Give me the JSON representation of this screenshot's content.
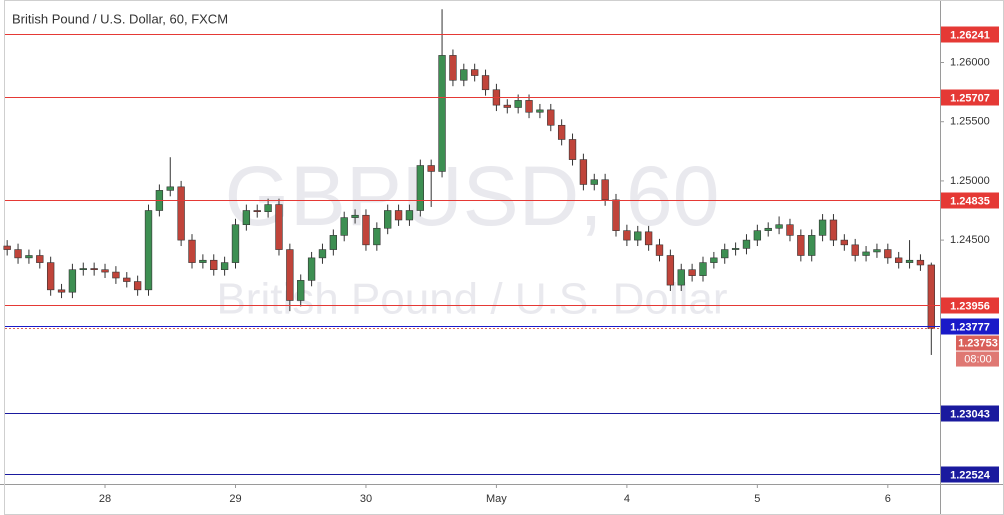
{
  "chart_data": {
    "type": "candlestick",
    "title": "British Pound / U.S. Dollar, 60, FXCM",
    "watermark": {
      "symbol": "GBPUSD, 60",
      "description": "British Pound / U.S. Dollar"
    },
    "up_color": "#3d8f52",
    "down_color": "#c0443a",
    "x": [
      -18,
      -16,
      -14,
      -12,
      -10,
      -8,
      -6,
      -4,
      -2,
      0,
      2,
      4,
      6,
      8,
      10,
      12,
      14,
      16,
      18,
      20,
      22,
      24,
      26,
      28,
      30,
      32,
      34,
      36,
      38,
      40,
      42,
      44,
      46,
      48,
      50,
      52,
      54,
      56,
      58,
      60,
      62,
      64,
      66,
      68,
      70,
      72,
      74,
      76,
      78,
      80,
      82,
      84,
      86,
      88,
      90,
      92,
      94,
      96,
      98,
      100,
      102,
      104,
      106,
      108,
      110,
      112,
      114,
      116,
      118,
      120,
      122,
      124,
      126,
      128,
      130,
      132,
      134,
      136,
      138,
      140,
      142,
      144,
      146,
      148,
      150,
      152
    ],
    "open": [
      1.2445,
      1.2442,
      1.2435,
      1.2437,
      1.2431,
      1.2408,
      1.2406,
      1.2425,
      1.2426,
      1.2425,
      1.2423,
      1.2418,
      1.2415,
      1.2408,
      1.2475,
      1.2492,
      1.2495,
      1.245,
      1.2431,
      1.2433,
      1.2425,
      1.2431,
      1.2463,
      1.2475,
      1.2474,
      1.248,
      1.2442,
      1.2399,
      1.2416,
      1.2435,
      1.2442,
      1.2454,
      1.2469,
      1.2471,
      1.2446,
      1.246,
      1.2475,
      1.2467,
      1.2475,
      1.2513,
      1.2508,
      1.2606,
      1.2585,
      1.2594,
      1.2589,
      1.2577,
      1.2564,
      1.2562,
      1.2568,
      1.2558,
      1.256,
      1.2547,
      1.2535,
      1.2518,
      1.2497,
      1.2501,
      1.2484,
      1.2458,
      1.245,
      1.2457,
      1.2446,
      1.2437,
      1.2412,
      1.2425,
      1.242,
      1.2431,
      1.2435,
      1.2442,
      1.2443,
      1.245,
      1.2458,
      1.246,
      1.2463,
      1.2454,
      1.2437,
      1.2454,
      1.2467,
      1.245,
      1.2446,
      1.2437,
      1.244,
      1.2442,
      1.2435,
      1.2431,
      1.2433,
      1.2429
    ],
    "high": [
      1.245,
      1.2447,
      1.2442,
      1.2442,
      1.2436,
      1.2413,
      1.243,
      1.2431,
      1.2431,
      1.243,
      1.2428,
      1.2423,
      1.242,
      1.248,
      1.2497,
      1.252,
      1.25,
      1.2455,
      1.2438,
      1.2438,
      1.2436,
      1.2468,
      1.248,
      1.248,
      1.2485,
      1.2485,
      1.2447,
      1.2421,
      1.244,
      1.2447,
      1.2459,
      1.2474,
      1.2476,
      1.2476,
      1.2465,
      1.248,
      1.248,
      1.248,
      1.2518,
      1.2518,
      1.2645,
      1.2611,
      1.2599,
      1.2599,
      1.2594,
      1.2582,
      1.2569,
      1.2573,
      1.2573,
      1.2565,
      1.2565,
      1.2552,
      1.254,
      1.2523,
      1.2506,
      1.2506,
      1.2489,
      1.2463,
      1.2462,
      1.2462,
      1.2451,
      1.2442,
      1.243,
      1.243,
      1.2436,
      1.244,
      1.2447,
      1.2448,
      1.2455,
      1.2463,
      1.2465,
      1.247,
      1.2468,
      1.2459,
      1.2459,
      1.2472,
      1.2472,
      1.2455,
      1.2451,
      1.2445,
      1.2447,
      1.2447,
      1.244,
      1.245,
      1.2438,
      1.2431
    ],
    "low": [
      1.2437,
      1.243,
      1.243,
      1.2426,
      1.2403,
      1.2401,
      1.2401,
      1.242,
      1.242,
      1.2418,
      1.2413,
      1.241,
      1.2403,
      1.2403,
      1.247,
      1.2487,
      1.2445,
      1.2426,
      1.2426,
      1.242,
      1.242,
      1.2426,
      1.2458,
      1.2469,
      1.2469,
      1.2437,
      1.239,
      1.2394,
      1.2411,
      1.243,
      1.2437,
      1.2449,
      1.2464,
      1.2441,
      1.2441,
      1.2455,
      1.2462,
      1.2462,
      1.247,
      1.2478,
      1.2503,
      1.258,
      1.258,
      1.2584,
      1.2572,
      1.2559,
      1.2557,
      1.2557,
      1.2553,
      1.2553,
      1.2542,
      1.253,
      1.2513,
      1.2492,
      1.2492,
      1.2479,
      1.2453,
      1.2445,
      1.2445,
      1.2441,
      1.2432,
      1.2407,
      1.2407,
      1.2415,
      1.2415,
      1.2426,
      1.243,
      1.2437,
      1.2438,
      1.2445,
      1.2453,
      1.2455,
      1.2449,
      1.2432,
      1.2432,
      1.2449,
      1.2445,
      1.2441,
      1.2432,
      1.2432,
      1.2435,
      1.243,
      1.2426,
      1.2426,
      1.2424,
      1.2353
    ],
    "close": [
      1.2442,
      1.2435,
      1.2437,
      1.2431,
      1.2408,
      1.2406,
      1.2425,
      1.2426,
      1.2425,
      1.2423,
      1.2418,
      1.2415,
      1.2408,
      1.2475,
      1.2492,
      1.2495,
      1.245,
      1.2431,
      1.2433,
      1.2425,
      1.2431,
      1.2463,
      1.2475,
      1.2474,
      1.248,
      1.2442,
      1.2399,
      1.2416,
      1.2435,
      1.2442,
      1.2454,
      1.2469,
      1.2471,
      1.2446,
      1.246,
      1.2475,
      1.2467,
      1.2475,
      1.2513,
      1.2508,
      1.2606,
      1.2585,
      1.2594,
      1.2589,
      1.2577,
      1.2564,
      1.2562,
      1.2568,
      1.2558,
      1.256,
      1.2547,
      1.2535,
      1.2518,
      1.2497,
      1.2501,
      1.2484,
      1.2458,
      1.245,
      1.2457,
      1.2446,
      1.2437,
      1.2412,
      1.2425,
      1.242,
      1.2431,
      1.2435,
      1.2442,
      1.2443,
      1.245,
      1.2458,
      1.246,
      1.2463,
      1.2454,
      1.2437,
      1.2454,
      1.2467,
      1.245,
      1.2446,
      1.2437,
      1.244,
      1.2442,
      1.2435,
      1.2431,
      1.2433,
      1.2429,
      1.23753
    ],
    "xlim": [
      -18.4,
      153.6
    ],
    "xticks": [
      {
        "value": 0,
        "label": "28"
      },
      {
        "value": 24,
        "label": "29"
      },
      {
        "value": 48,
        "label": "30"
      },
      {
        "value": 72,
        "label": "May"
      },
      {
        "value": 96,
        "label": "4"
      },
      {
        "value": 120,
        "label": "5"
      },
      {
        "value": 144,
        "label": "6"
      }
    ],
    "ylim": [
      1.2244,
      1.26528
    ],
    "yticks": [
      {
        "value": 1.245,
        "label": "1.24500"
      },
      {
        "value": 1.25,
        "label": "1.25000"
      },
      {
        "value": 1.255,
        "label": "1.25500"
      },
      {
        "value": 1.26,
        "label": "1.26000"
      }
    ],
    "grid": false,
    "levels": [
      {
        "value": 1.26241,
        "color": "#e53935"
      },
      {
        "value": 1.25707,
        "color": "#e53935"
      },
      {
        "value": 1.24835,
        "color": "#e53935"
      },
      {
        "value": 1.23956,
        "color": "#e53935"
      },
      {
        "value": 1.23777,
        "color": "#1a1ac8"
      },
      {
        "value": 1.23043,
        "color": "#1a1a9e"
      },
      {
        "value": 1.22524,
        "color": "#1a1a9e"
      }
    ],
    "last_price": {
      "value": 1.23753,
      "countdown": "08:00",
      "color": "#d9605a"
    }
  }
}
